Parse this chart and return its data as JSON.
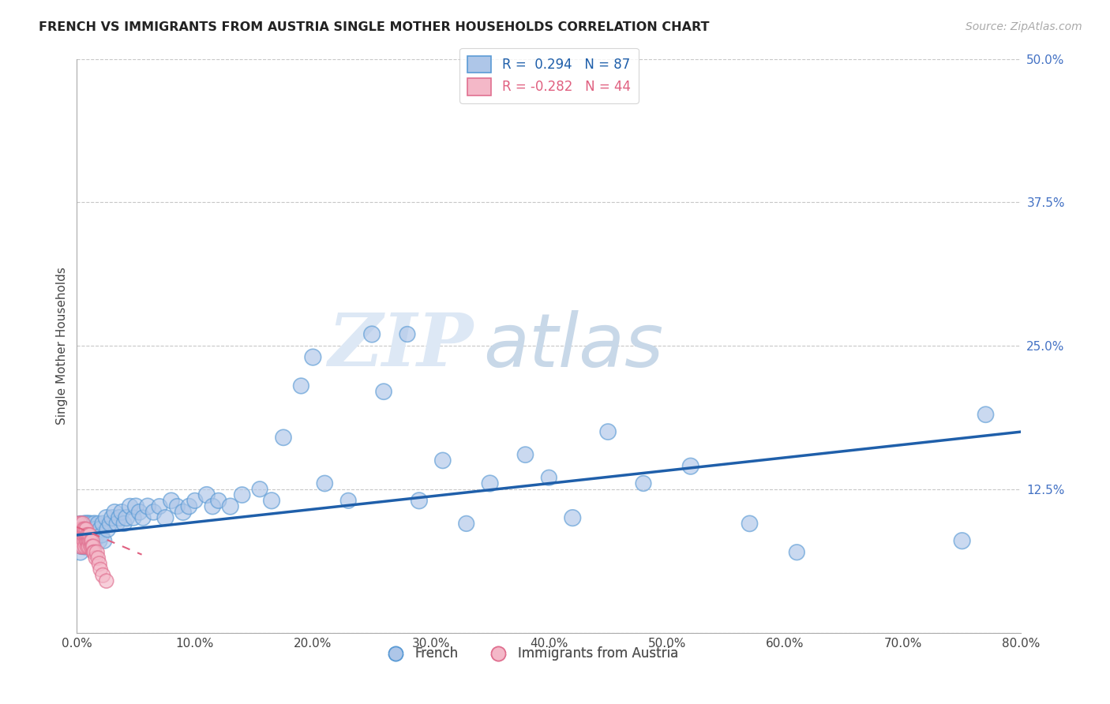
{
  "title": "FRENCH VS IMMIGRANTS FROM AUSTRIA SINGLE MOTHER HOUSEHOLDS CORRELATION CHART",
  "source": "Source: ZipAtlas.com",
  "ylabel": "Single Mother Households",
  "xlim": [
    0,
    0.8
  ],
  "ylim": [
    0,
    0.5
  ],
  "xticks": [
    0.0,
    0.1,
    0.2,
    0.3,
    0.4,
    0.5,
    0.6,
    0.7,
    0.8
  ],
  "xticklabels": [
    "0.0%",
    "10.0%",
    "20.0%",
    "30.0%",
    "40.0%",
    "50.0%",
    "60.0%",
    "70.0%",
    "80.0%"
  ],
  "yticks": [
    0.0,
    0.125,
    0.25,
    0.375,
    0.5
  ],
  "yticklabels": [
    "",
    "12.5%",
    "25.0%",
    "37.5%",
    "50.0%"
  ],
  "grid_color": "#c8c8c8",
  "background_color": "#ffffff",
  "french_color": "#aec6e8",
  "french_edge_color": "#5b9bd5",
  "austria_color": "#f4b8c8",
  "austria_edge_color": "#e07090",
  "blue_line_color": "#1f5faa",
  "pink_line_color": "#e06080",
  "legend_R_french": "0.294",
  "legend_N_french": "87",
  "legend_R_austria": "-0.282",
  "legend_N_austria": "44",
  "watermark_zip": "ZIP",
  "watermark_atlas": "atlas",
  "blue_line_x0": 0.0,
  "blue_line_y0": 0.085,
  "blue_line_x1": 0.8,
  "blue_line_y1": 0.175,
  "pink_line_x0": 0.0,
  "pink_line_y0": 0.092,
  "pink_line_x1": 0.055,
  "pink_line_y1": 0.068,
  "french_x": [
    0.002,
    0.003,
    0.003,
    0.004,
    0.004,
    0.005,
    0.005,
    0.006,
    0.006,
    0.007,
    0.007,
    0.008,
    0.008,
    0.009,
    0.009,
    0.01,
    0.01,
    0.011,
    0.011,
    0.012,
    0.012,
    0.013,
    0.013,
    0.014,
    0.015,
    0.015,
    0.016,
    0.017,
    0.018,
    0.019,
    0.02,
    0.021,
    0.022,
    0.023,
    0.025,
    0.026,
    0.028,
    0.03,
    0.032,
    0.034,
    0.036,
    0.038,
    0.04,
    0.042,
    0.045,
    0.048,
    0.05,
    0.053,
    0.056,
    0.06,
    0.065,
    0.07,
    0.075,
    0.08,
    0.085,
    0.09,
    0.095,
    0.1,
    0.11,
    0.115,
    0.12,
    0.13,
    0.14,
    0.155,
    0.165,
    0.175,
    0.19,
    0.2,
    0.21,
    0.23,
    0.25,
    0.26,
    0.28,
    0.29,
    0.31,
    0.33,
    0.35,
    0.38,
    0.4,
    0.42,
    0.45,
    0.48,
    0.52,
    0.57,
    0.61,
    0.75,
    0.77
  ],
  "french_y": [
    0.08,
    0.095,
    0.07,
    0.085,
    0.075,
    0.09,
    0.08,
    0.085,
    0.095,
    0.075,
    0.09,
    0.085,
    0.095,
    0.08,
    0.09,
    0.095,
    0.085,
    0.09,
    0.08,
    0.095,
    0.085,
    0.09,
    0.08,
    0.085,
    0.095,
    0.08,
    0.09,
    0.085,
    0.095,
    0.08,
    0.09,
    0.085,
    0.095,
    0.08,
    0.1,
    0.09,
    0.095,
    0.1,
    0.105,
    0.095,
    0.1,
    0.105,
    0.095,
    0.1,
    0.11,
    0.1,
    0.11,
    0.105,
    0.1,
    0.11,
    0.105,
    0.11,
    0.1,
    0.115,
    0.11,
    0.105,
    0.11,
    0.115,
    0.12,
    0.11,
    0.115,
    0.11,
    0.12,
    0.125,
    0.115,
    0.17,
    0.215,
    0.24,
    0.13,
    0.115,
    0.26,
    0.21,
    0.26,
    0.115,
    0.15,
    0.095,
    0.13,
    0.155,
    0.135,
    0.1,
    0.175,
    0.13,
    0.145,
    0.095,
    0.07,
    0.08,
    0.19
  ],
  "french_sizes": [
    220,
    200,
    210,
    220,
    200,
    210,
    220,
    200,
    210,
    220,
    200,
    210,
    220,
    200,
    210,
    220,
    200,
    210,
    220,
    200,
    210,
    220,
    200,
    210,
    220,
    200,
    210,
    220,
    200,
    210,
    220,
    200,
    210,
    200,
    220,
    210,
    200,
    220,
    210,
    200,
    220,
    210,
    200,
    220,
    210,
    200,
    220,
    210,
    200,
    220,
    210,
    200,
    220,
    210,
    200,
    220,
    210,
    200,
    220,
    210,
    200,
    220,
    210,
    200,
    220,
    210,
    200,
    220,
    210,
    200,
    220,
    210,
    200,
    220,
    210,
    200,
    220,
    210,
    200,
    220,
    210,
    200,
    220,
    210,
    200,
    220,
    210
  ],
  "austria_x": [
    0.001,
    0.001,
    0.002,
    0.002,
    0.003,
    0.003,
    0.003,
    0.004,
    0.004,
    0.004,
    0.005,
    0.005,
    0.005,
    0.006,
    0.006,
    0.006,
    0.007,
    0.007,
    0.007,
    0.008,
    0.008,
    0.008,
    0.009,
    0.009,
    0.009,
    0.01,
    0.01,
    0.01,
    0.011,
    0.011,
    0.012,
    0.012,
    0.013,
    0.013,
    0.014,
    0.014,
    0.015,
    0.016,
    0.017,
    0.018,
    0.019,
    0.02,
    0.022,
    0.025
  ],
  "austria_y": [
    0.085,
    0.095,
    0.08,
    0.09,
    0.075,
    0.085,
    0.095,
    0.08,
    0.09,
    0.085,
    0.075,
    0.085,
    0.095,
    0.08,
    0.09,
    0.085,
    0.075,
    0.085,
    0.09,
    0.08,
    0.085,
    0.09,
    0.075,
    0.08,
    0.085,
    0.08,
    0.085,
    0.075,
    0.08,
    0.085,
    0.075,
    0.08,
    0.08,
    0.075,
    0.075,
    0.07,
    0.07,
    0.065,
    0.07,
    0.065,
    0.06,
    0.055,
    0.05,
    0.045
  ],
  "austria_sizes": [
    180,
    170,
    180,
    170,
    180,
    170,
    180,
    170,
    180,
    170,
    180,
    170,
    180,
    170,
    180,
    170,
    180,
    170,
    180,
    170,
    180,
    170,
    180,
    170,
    180,
    170,
    180,
    170,
    180,
    170,
    180,
    170,
    180,
    170,
    180,
    170,
    180,
    170,
    180,
    170,
    180,
    170,
    180,
    170
  ]
}
